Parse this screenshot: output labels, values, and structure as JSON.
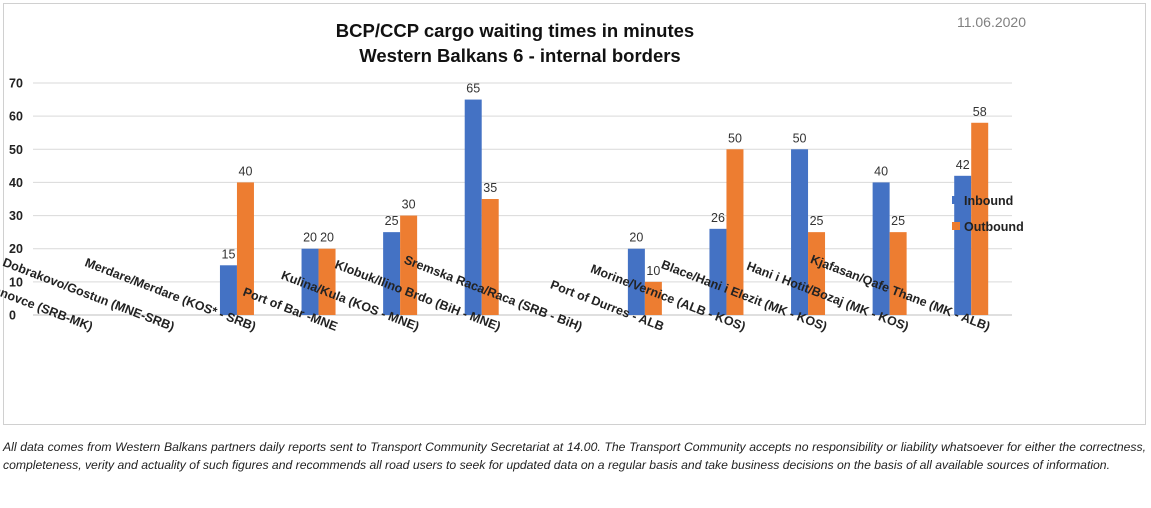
{
  "date": "11.06.2020",
  "disclaimer": "All data comes from Western Balkans partners daily reports sent to Transport Community Secretariat at 14.00. The Transport Community accepts no responsibility or liability whatsoever for either the correctness, completeness, verity and actuality of such figures and recommends all road users to seek for updated data on a regular basis and take business decisions on the basis of all available sources of information.",
  "chart_data": {
    "type": "bar",
    "title": "BCP/CCP cargo waiting times in minutes",
    "subtitle": "Western Balkans 6 - internal borders",
    "xlabel": "",
    "ylabel": "",
    "ylim": [
      0,
      70
    ],
    "yticks": [
      0,
      10,
      20,
      30,
      40,
      50,
      60,
      70
    ],
    "grid": true,
    "legend_position": "right",
    "categories": [
      "Presevo/ Tabanovce (SRB-MK)",
      "Dobrakovo/Gostun (MNE-SRB)",
      "Merdare/Merdare (KOS* - SRB)",
      "Port of Bar -MNE",
      "Kulina/Kula (KOS - MNE)",
      "Klobuk/Ilino Brdo (BiH - MNE)",
      "Sremska Raca/Raca (SRB - BiH)",
      "Port of Durres - ALB",
      "Morine/Vernice (ALB - KOS)",
      "Blace/Hani i Elezit (MK - KOS)",
      "Hani i Hotit/Bozaj (MK - KOS)",
      "Kjafasan/Qafe Thane (MK - ALB)"
    ],
    "series": [
      {
        "name": "Inbound",
        "color": "#4472C4",
        "values": [
          null,
          null,
          15,
          20,
          25,
          65,
          null,
          20,
          26,
          50,
          40,
          42
        ]
      },
      {
        "name": "Outbound",
        "color": "#ED7D31",
        "values": [
          null,
          null,
          40,
          20,
          30,
          35,
          null,
          10,
          50,
          25,
          25,
          58
        ]
      }
    ]
  }
}
